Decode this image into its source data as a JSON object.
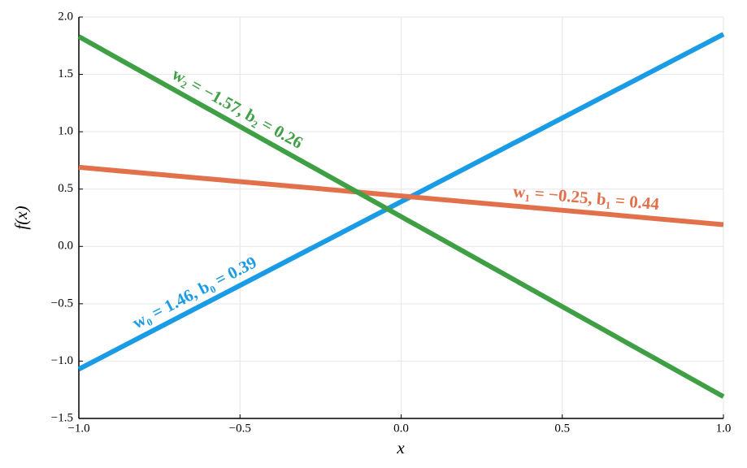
{
  "chart_data": {
    "type": "line",
    "x_label": "x",
    "y_label": "f(x)",
    "x": [
      -1,
      1
    ],
    "series": [
      {
        "color": "#1a9be6",
        "values": [
          -1.07,
          1.85
        ]
      },
      {
        "color": "#e2704a",
        "values": [
          0.69,
          0.19
        ]
      },
      {
        "color": "#3f9f45",
        "values": [
          1.83,
          -1.31
        ]
      }
    ],
    "annotations": [
      "w₀ = 1.46,  b₀ = 0.39",
      "w₁ = −0.25,  b₁ = 0.44",
      "w₂ = −1.57,  b₂ = 0.26"
    ],
    "xlim": [
      -1,
      1
    ],
    "ylim": [
      -1.5,
      2
    ],
    "xticks": [
      {
        "value": -1,
        "label": "−1.0"
      },
      {
        "value": -0.5,
        "label": "−0.5"
      },
      {
        "value": 0,
        "label": "0.0"
      },
      {
        "value": 0.5,
        "label": "0.5"
      },
      {
        "value": 1,
        "label": "1.0"
      }
    ],
    "yticks": [
      {
        "value": -1.5,
        "label": "−1.5"
      },
      {
        "value": -1,
        "label": "−1.0"
      },
      {
        "value": -0.5,
        "label": "−0.5"
      },
      {
        "value": 0,
        "label": "0.0"
      },
      {
        "value": 0.5,
        "label": "0.5"
      },
      {
        "value": 1,
        "label": "1.0"
      },
      {
        "value": 1.5,
        "label": "1.5"
      },
      {
        "value": 2,
        "label": "2.0"
      }
    ],
    "grid": true
  }
}
